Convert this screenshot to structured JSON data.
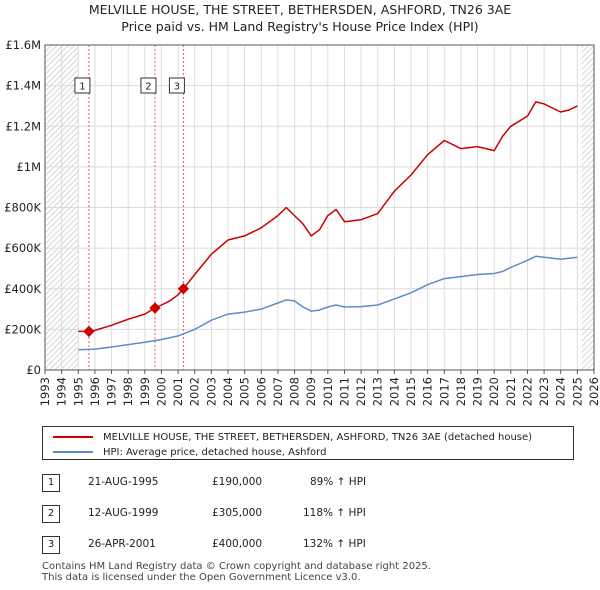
{
  "title_line1": "MELVILLE HOUSE, THE STREET, BETHERSDEN, ASHFORD, TN26 3AE",
  "title_line2": "Price paid vs. HM Land Registry's House Price Index (HPI)",
  "chart_data": {
    "type": "line",
    "xlim": [
      1993,
      2026
    ],
    "ylim": [
      0,
      1600000
    ],
    "y_ticks": [
      0,
      200000,
      400000,
      600000,
      800000,
      1000000,
      1200000,
      1400000,
      1600000
    ],
    "y_tick_labels": [
      "£0",
      "£200K",
      "£400K",
      "£600K",
      "£800K",
      "£1M",
      "£1.2M",
      "£1.4M",
      "£1.6M"
    ],
    "x_tick_labels": [
      "1993",
      "1994",
      "1995",
      "1996",
      "1997",
      "1998",
      "1999",
      "2000",
      "2001",
      "2002",
      "2003",
      "2004",
      "2005",
      "2006",
      "2007",
      "2008",
      "2009",
      "2010",
      "2011",
      "2012",
      "2013",
      "2014",
      "2015",
      "2016",
      "2017",
      "2018",
      "2019",
      "2020",
      "2021",
      "2022",
      "2023",
      "2024",
      "2025",
      "2026"
    ],
    "data_range": [
      1995.0,
      2025.25
    ],
    "series": [
      {
        "name": "MELVILLE HOUSE, THE STREET, BETHERSDEN, ASHFORD, TN26 3AE (detached house)",
        "color": "#cc0000",
        "x": [
          1995.0,
          1995.64,
          1996.0,
          1997.0,
          1998.0,
          1999.0,
          1999.61,
          2000.0,
          2000.5,
          2001.0,
          2001.32,
          2002.0,
          2003.0,
          2004.0,
          2005.0,
          2006.0,
          2007.0,
          2007.5,
          2008.0,
          2008.5,
          2009.0,
          2009.5,
          2010.0,
          2010.5,
          2011.0,
          2012.0,
          2013.0,
          2014.0,
          2015.0,
          2016.0,
          2017.0,
          2018.0,
          2019.0,
          2020.0,
          2020.5,
          2021.0,
          2022.0,
          2022.5,
          2023.0,
          2023.5,
          2024.0,
          2024.5,
          2025.0
        ],
        "y": [
          190000,
          190000,
          195000,
          220000,
          250000,
          275000,
          305000,
          320000,
          340000,
          370000,
          400000,
          470000,
          570000,
          640000,
          660000,
          700000,
          760000,
          800000,
          760000,
          720000,
          660000,
          690000,
          760000,
          790000,
          730000,
          740000,
          770000,
          880000,
          960000,
          1060000,
          1130000,
          1090000,
          1100000,
          1080000,
          1150000,
          1200000,
          1250000,
          1320000,
          1310000,
          1290000,
          1270000,
          1280000,
          1300000
        ]
      },
      {
        "name": "HPI: Average price, detached house, Ashford",
        "color": "#5b8ec8",
        "x": [
          1995.0,
          1996.0,
          1997.0,
          1998.0,
          1999.0,
          2000.0,
          2001.0,
          2002.0,
          2003.0,
          2004.0,
          2005.0,
          2006.0,
          2007.0,
          2007.5,
          2008.0,
          2008.5,
          2009.0,
          2009.5,
          2010.0,
          2010.5,
          2011.0,
          2012.0,
          2013.0,
          2014.0,
          2015.0,
          2016.0,
          2017.0,
          2018.0,
          2019.0,
          2020.0,
          2020.5,
          2021.0,
          2022.0,
          2022.5,
          2023.0,
          2023.5,
          2024.0,
          2024.5,
          2025.0
        ],
        "y": [
          100000,
          103000,
          113000,
          125000,
          137000,
          150000,
          168000,
          200000,
          245000,
          275000,
          285000,
          300000,
          330000,
          345000,
          340000,
          310000,
          290000,
          295000,
          310000,
          320000,
          310000,
          312000,
          320000,
          350000,
          380000,
          420000,
          450000,
          460000,
          470000,
          475000,
          485000,
          505000,
          540000,
          560000,
          555000,
          550000,
          545000,
          550000,
          555000
        ]
      }
    ],
    "sales": [
      {
        "num": "1",
        "date": "21-AUG-1995",
        "x": 1995.64,
        "price": 190000,
        "price_label": "£190,000",
        "hpi": "89% ↑ HPI"
      },
      {
        "num": "2",
        "date": "12-AUG-1999",
        "x": 1999.61,
        "price": 305000,
        "price_label": "£305,000",
        "hpi": "118% ↑ HPI"
      },
      {
        "num": "3",
        "date": "26-APR-2001",
        "x": 2001.32,
        "price": 400000,
        "price_label": "£400,000",
        "hpi": "132% ↑ HPI"
      }
    ]
  },
  "legend": {
    "red_label": "MELVILLE HOUSE, THE STREET, BETHERSDEN, ASHFORD, TN26 3AE (detached house)",
    "blue_label": "HPI: Average price, detached house, Ashford"
  },
  "footer_line1": "Contains HM Land Registry data © Crown copyright and database right 2025.",
  "footer_line2": "This data is licensed under the Open Government Licence v3.0."
}
